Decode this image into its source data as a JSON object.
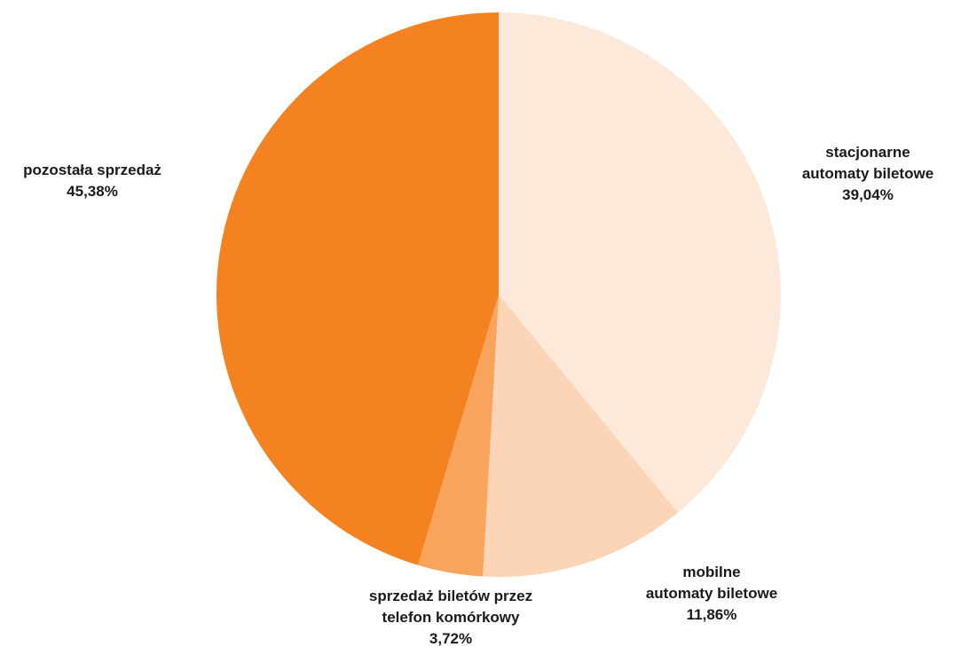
{
  "chart_data": {
    "type": "pie",
    "start_angle_deg": 0,
    "direction": "clockwise",
    "slices": [
      {
        "label_lines": [
          "stacjonarne",
          "automaty biletowe"
        ],
        "value": 39.04,
        "value_label": "39,04%",
        "color": "#fde9d9"
      },
      {
        "label_lines": [
          "mobilne",
          "automaty biletowe"
        ],
        "value": 11.86,
        "value_label": "11,86%",
        "color": "#fbd5b5"
      },
      {
        "label_lines": [
          "sprzedaż biletów przez",
          "telefon komórkowy"
        ],
        "value": 3.72,
        "value_label": "3,72%",
        "color": "#f9a45c"
      },
      {
        "label_lines": [
          "pozostała sprzedaż"
        ],
        "value": 45.38,
        "value_label": "45,38%",
        "color": "#f58220"
      }
    ]
  }
}
